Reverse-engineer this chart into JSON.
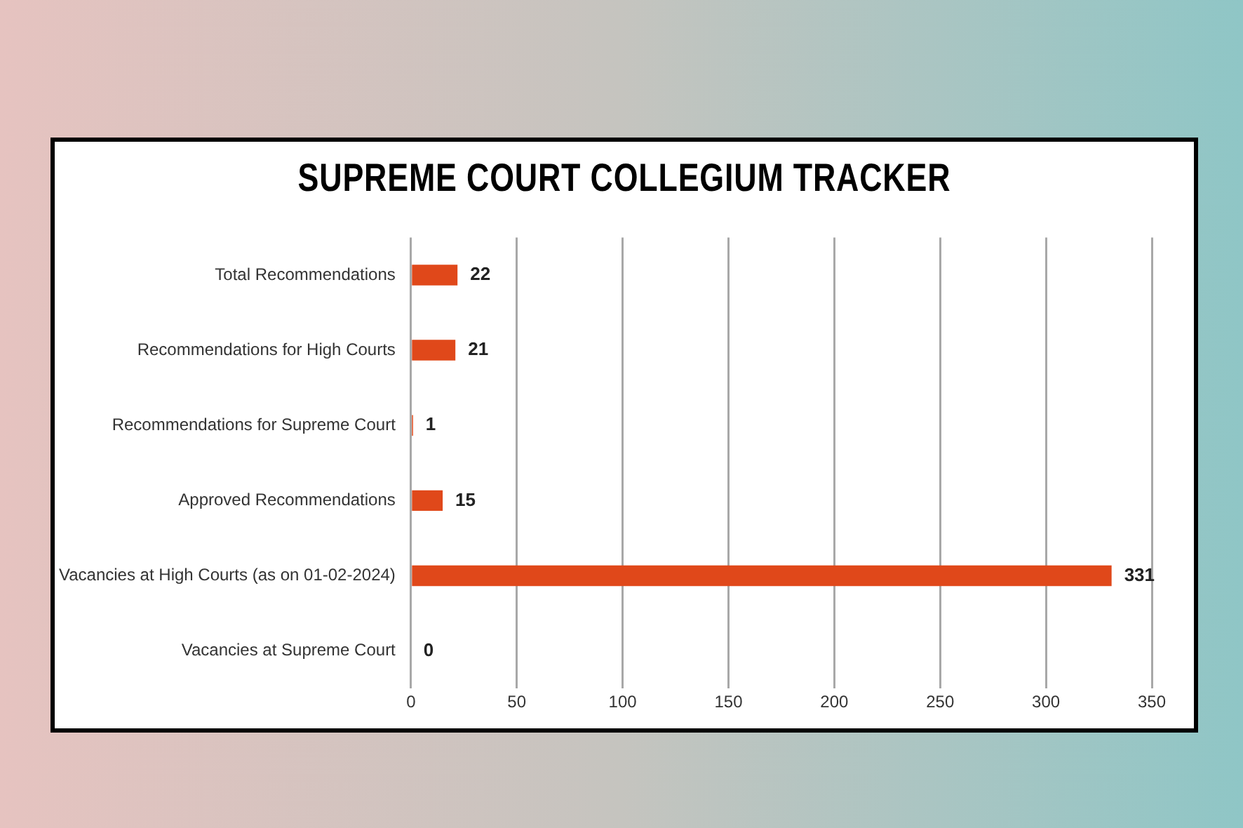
{
  "chart_data": {
    "type": "bar",
    "orientation": "horizontal",
    "title": "SUPREME COURT COLLEGIUM TRACKER",
    "categories": [
      "Total Recommendations",
      "Recommendations for High Courts",
      "Recommendations for Supreme Court",
      "Approved Recommendations",
      "Vacancies at High Courts (as on 01-02-2024)",
      "Vacancies at Supreme Court"
    ],
    "values": [
      22,
      21,
      1,
      15,
      331,
      0
    ],
    "color": "#e0481a",
    "xlim": [
      0,
      350
    ],
    "xticks": [
      0,
      50,
      100,
      150,
      200,
      250,
      300,
      350
    ],
    "grid": "x",
    "legend": false,
    "data_labels": true
  }
}
